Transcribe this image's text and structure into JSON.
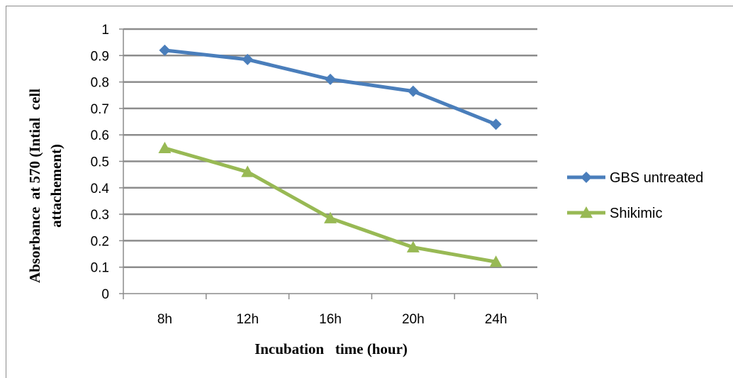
{
  "chart_data": {
    "type": "line",
    "categories": [
      "8h",
      "12h",
      "16h",
      "20h",
      "24h"
    ],
    "series": [
      {
        "name": "GBS untreated",
        "values": [
          0.92,
          0.885,
          0.81,
          0.765,
          0.64
        ],
        "color": "#4a7ebb",
        "marker": "diamond"
      },
      {
        "name": "Shikimic",
        "values": [
          0.55,
          0.46,
          0.285,
          0.175,
          0.12
        ],
        "color": "#98b954",
        "marker": "triangle"
      }
    ],
    "y_ticks": [
      "0",
      "0.1",
      "0.2",
      "0.3",
      "0.4",
      "0.5",
      "0.6",
      "0.7",
      "0.8",
      "0.9",
      "1"
    ],
    "ylim": [
      0,
      1
    ],
    "xlabel": "Incubation   time (hour)",
    "ylabel_line1": "Absorbance  at 570 (Intial  cell",
    "ylabel_line2": "attachement)",
    "grid": true,
    "legend_position": "right",
    "gridline_color": "#8c8c8c"
  }
}
